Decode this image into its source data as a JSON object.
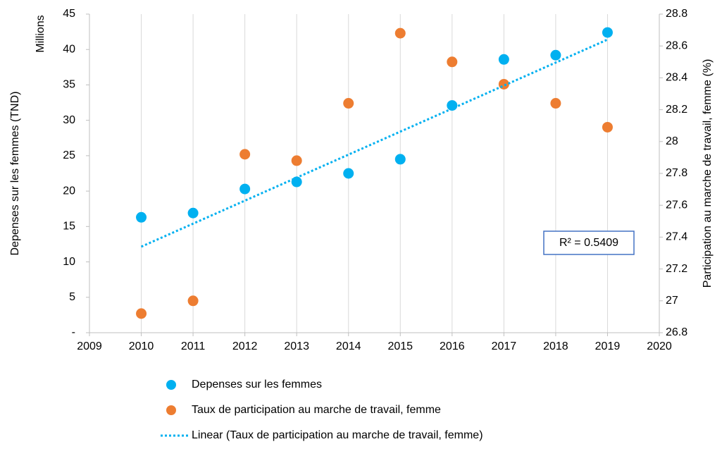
{
  "chart_data": {
    "type": "scatter",
    "ylabel": "Depenses sur les femmes (TND)",
    "yunit": "Millions",
    "y2label": "Participation au marche de travail, femme (%)",
    "annotation": "R² = 0.5409",
    "x": [
      2010,
      2011,
      2012,
      2013,
      2014,
      2015,
      2016,
      2017,
      2018,
      2019
    ],
    "series": [
      {
        "name": "Depenses sur les femmes",
        "color": "#00b0f0",
        "axis": "y",
        "values": [
          16.3,
          16.9,
          20.3,
          21.3,
          22.5,
          24.5,
          32.1,
          38.6,
          39.2,
          42.4
        ]
      },
      {
        "name": "Taux de participation au marche de travail, femme",
        "color": "#ed7d31",
        "axis": "y2",
        "values": [
          26.92,
          27.0,
          27.92,
          27.88,
          28.24,
          28.68,
          28.5,
          28.36,
          28.24,
          28.09
        ]
      },
      {
        "name": "Linear (Taux de participation au marche de travail, femme)",
        "color": "#00b0f0",
        "axis": "y2",
        "type": "line",
        "x": [
          2010,
          2019
        ],
        "values": [
          27.34,
          28.64
        ]
      }
    ],
    "xlim": [
      2009,
      2020
    ],
    "xticks": [
      2009,
      2010,
      2011,
      2012,
      2013,
      2014,
      2015,
      2016,
      2017,
      2018,
      2019,
      2020
    ],
    "ylim": [
      0,
      45
    ],
    "yticks": [
      {
        "value": 0,
        "label": "-"
      },
      5,
      10,
      15,
      20,
      25,
      30,
      35,
      40,
      45
    ],
    "y2lim": [
      26.8,
      28.8
    ],
    "y2ticks": [
      26.8,
      27,
      27.2,
      27.4,
      27.6,
      27.8,
      28,
      28.2,
      28.4,
      28.6,
      28.8
    ],
    "grid": true,
    "legend": "bottom"
  }
}
